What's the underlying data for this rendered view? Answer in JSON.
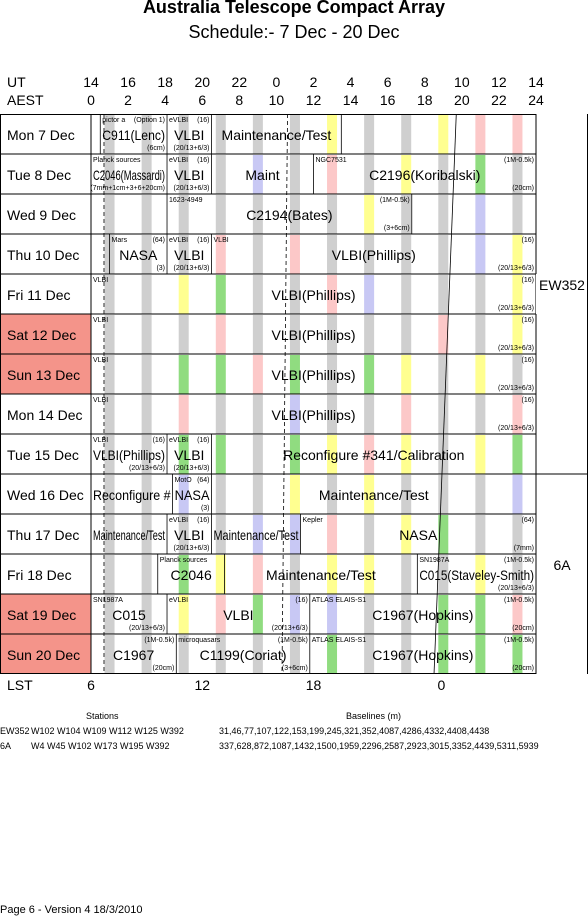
{
  "title": "Australia Telescope Compact Array",
  "subtitle": "Schedule:- 7  Dec - 20 Dec",
  "header": {
    "ut_label": "UT",
    "aest_label": "AEST",
    "ut_ticks": [
      "14",
      "16",
      "18",
      "20",
      "22",
      "0",
      "2",
      "4",
      "6",
      "8",
      "10",
      "12",
      "14"
    ],
    "aest_ticks": [
      "0",
      "2",
      "4",
      "6",
      "8",
      "10",
      "12",
      "14",
      "16",
      "18",
      "20",
      "22",
      "24"
    ]
  },
  "lst": {
    "label": "LST",
    "ticks": [
      "6",
      "12",
      "18",
      "0"
    ]
  },
  "colors": {
    "weekend": "#f4948a",
    "grey": "#cfcfcf",
    "green": "#90dc80",
    "blue": "#c8c8f4",
    "yellow": "#ffff90",
    "pink": "#fcc8c8"
  },
  "days": [
    {
      "label": "Mon  7 Dec",
      "weekend": false,
      "blocks": [
        {
          "a": 0.5,
          "b": 4.1,
          "main": "C911(Lenc)",
          "tl": "pictor a",
          "tr": "(Option 1)",
          "br": "(6cm)"
        },
        {
          "a": 4.1,
          "b": 6.5,
          "main": "VLBI",
          "tl": "eVLBI",
          "tr": "(16)",
          "br": "(20/13+6/3)"
        },
        {
          "a": 6.5,
          "b": 13.5,
          "main": "Maintenance/Test"
        },
        {
          "a": 13.5,
          "b": 24,
          "main": ""
        }
      ]
    },
    {
      "label": "Tue  8 Dec",
      "weekend": false,
      "blocks": [
        {
          "a": 0,
          "b": 4.1,
          "main": "C2046(Massardi)",
          "tl": "Planck sources",
          "br": "(7mm+1cm+3+6+20cm)"
        },
        {
          "a": 4.1,
          "b": 6.5,
          "main": "VLBI",
          "tl": "eVLBI",
          "tr": "(16)",
          "br": "(20/13+6/3)"
        },
        {
          "a": 6.5,
          "b": 12,
          "main": "Maint"
        },
        {
          "a": 12,
          "b": 24,
          "main": "C2196(Koribalski)",
          "tl": "NGC7531",
          "tr": "(1M-0.5k)",
          "br": "(20cm)"
        }
      ]
    },
    {
      "label": "Wed  9 Dec",
      "weekend": false,
      "blocks": [
        {
          "a": 0,
          "b": 4.1,
          "main": ""
        },
        {
          "a": 4.1,
          "b": 17.3,
          "main": "C2194(Bates)",
          "tl": "1623-4949",
          "tr": "(1M-0.5k)",
          "br": "(3+6cm)"
        },
        {
          "a": 17.3,
          "b": 24,
          "main": ""
        }
      ]
    },
    {
      "label": "Thu  10 Dec",
      "weekend": false,
      "blocks": [
        {
          "a": 0,
          "b": 1,
          "main": ""
        },
        {
          "a": 1,
          "b": 4.1,
          "main": "NASA",
          "tl": "Mars",
          "tr": "(64)",
          "br": "(3)"
        },
        {
          "a": 4.1,
          "b": 6.5,
          "main": "VLBI",
          "tl": "eVLBI",
          "tr": "(16)",
          "br": "(20/13+6/3)"
        },
        {
          "a": 6.5,
          "b": 24,
          "main": "VLBI(Phillips)",
          "tl": "VLBI",
          "tr": "(16)",
          "br": "(20/13+6/3)"
        }
      ]
    },
    {
      "label": "Fri   11 Dec",
      "weekend": false,
      "blocks": [
        {
          "a": 0,
          "b": 24,
          "main": "VLBI(Phillips)",
          "tl": "VLBI",
          "tr": "(16)",
          "br": "(20/13+6/3)"
        }
      ]
    },
    {
      "label": "Sat   12 Dec",
      "weekend": true,
      "blocks": [
        {
          "a": 0,
          "b": 24,
          "main": "VLBI(Phillips)",
          "tl": "VLBI",
          "tr": "(16)",
          "br": "(20/13+6/3)"
        }
      ]
    },
    {
      "label": "Sun  13 Dec",
      "weekend": true,
      "blocks": [
        {
          "a": 0,
          "b": 24,
          "main": "VLBI(Phillips)",
          "tl": "VLBI",
          "tr": "(16)",
          "br": "(20/13+6/3)"
        }
      ]
    },
    {
      "label": "Mon  14 Dec",
      "weekend": false,
      "blocks": [
        {
          "a": 0,
          "b": 24,
          "main": "VLBI(Phillips)",
          "tl": "VLBI",
          "tr": "(16)",
          "br": "(20/13+6/3)"
        }
      ]
    },
    {
      "label": "Tue   15 Dec",
      "weekend": false,
      "blocks": [
        {
          "a": 0,
          "b": 4.1,
          "main": "VLBI(Phillips)",
          "tl": "VLBI",
          "tr": "(16)",
          "br": "(20/13+6/3)"
        },
        {
          "a": 4.1,
          "b": 6.5,
          "main": "VLBI",
          "tl": "eVLBI",
          "tr": "(16)",
          "br": "(20/13+6/3)"
        },
        {
          "a": 6.5,
          "b": 24,
          "main": "Reconfigure #341/Calibration"
        }
      ]
    },
    {
      "label": "Wed  16 Dec",
      "weekend": false,
      "blocks": [
        {
          "a": 0,
          "b": 4.4,
          "main": "Reconfigure #"
        },
        {
          "a": 4.4,
          "b": 6.5,
          "main": "NASA",
          "tl": "MotO",
          "tr": "(64)",
          "br": "(3)"
        },
        {
          "a": 6.5,
          "b": 24,
          "main": "Maintenance/Test"
        }
      ]
    },
    {
      "label": "Thu  17 Dec",
      "weekend": false,
      "blocks": [
        {
          "a": 0,
          "b": 4.1,
          "main": "Maintenance/Test"
        },
        {
          "a": 4.1,
          "b": 6.5,
          "main": "VLBI",
          "tl": "eVLBI",
          "tr": "(16)",
          "br": "(20/13+6/3)"
        },
        {
          "a": 6.5,
          "b": 11.3,
          "main": "Maintenance/Test"
        },
        {
          "a": 11.3,
          "b": 24,
          "main": "NASA",
          "tl": "Kepler",
          "tr": "(64)",
          "br": "(7mm)"
        }
      ]
    },
    {
      "label": "Fri   18 Dec",
      "weekend": false,
      "blocks": [
        {
          "a": 0,
          "b": 3.6,
          "main": ""
        },
        {
          "a": 3.6,
          "b": 7.2,
          "main": "C2046",
          "tl": "Planck sources"
        },
        {
          "a": 7.2,
          "b": 17.6,
          "main": "Maintenance/Test"
        },
        {
          "a": 17.6,
          "b": 24,
          "main": "C015(Staveley-Smith)",
          "tl": "SN1987A",
          "tr": "(1M-0.5k)",
          "br": "(20/13+6/3)"
        }
      ]
    },
    {
      "label": "Sat   19 Dec",
      "weekend": true,
      "blocks": [
        {
          "a": 0,
          "b": 4.1,
          "main": "C015",
          "tl": "SN1987A",
          "br": "(20/13+6/3)"
        },
        {
          "a": 4.1,
          "b": 11.8,
          "main": "VLBI",
          "tl": "eVLBI",
          "tr": "(16)",
          "br": "(20/13+6/3)"
        },
        {
          "a": 11.8,
          "b": 24,
          "main": "C1967(Hopkins)",
          "tl": "ATLAS ELAIS-S1",
          "tr": "(1M-0.5k)",
          "br": "(20cm)"
        }
      ]
    },
    {
      "label": "Sun  20 Dec",
      "weekend": true,
      "blocks": [
        {
          "a": 0,
          "b": 4.6,
          "main": "C1967",
          "tr": "(1M-0.5k)",
          "br": "(20cm)"
        },
        {
          "a": 4.6,
          "b": 11.8,
          "main": "C1199(Coriat)",
          "tl": "microquasars",
          "tr": "(1M-0.5k)",
          "br": "(3+6cm)"
        },
        {
          "a": 11.8,
          "b": 24,
          "main": "C1967(Hopkins)",
          "tl": "ATLAS ELAIS-S1",
          "tr": "(1M-0.5k)",
          "br": "(20cm)"
        }
      ]
    }
  ],
  "config_labels": [
    "EW352",
    "6A"
  ],
  "stations": {
    "header": "Stations",
    "baselines_header": "Baselines (m)",
    "rows": [
      {
        "config": "EW352",
        "stations": "W102 W104 W109 W112 W125 W392",
        "baselines": "31,46,77,107,122,153,199,245,321,352,4087,4286,4332,4408,4438"
      },
      {
        "config": "6A",
        "stations": "W4 W45 W102 W173 W195 W392",
        "baselines": "337,628,872,1087,1432,1500,1959,2296,2587,2923,3015,3352,4439,5311,5939"
      }
    ]
  },
  "footer": "Page 6 - Version 4  18/3/2010"
}
